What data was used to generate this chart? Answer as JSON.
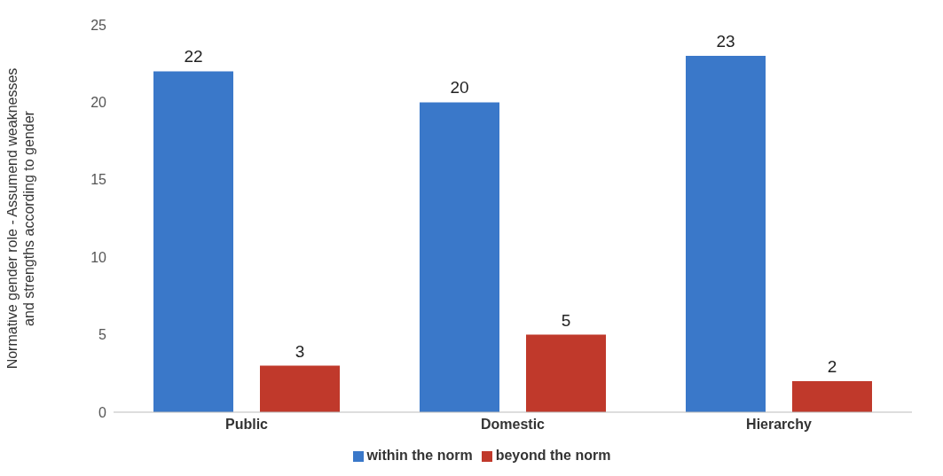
{
  "chart_data": {
    "type": "bar",
    "ylabel": "Normative gender role - Assumend weaknesses and strengths according to gender",
    "categories": [
      "Public",
      "Domestic",
      "Hierarchy"
    ],
    "series": [
      {
        "name": "within the norm",
        "color": "#3a78c9",
        "values": [
          22,
          20,
          23
        ]
      },
      {
        "name": "beyond the norm",
        "color": "#c0392b",
        "values": [
          3,
          5,
          2
        ]
      }
    ],
    "ylim": [
      0,
      25
    ],
    "yticks": [
      0,
      5,
      10,
      15,
      20,
      25
    ],
    "data_labels": true,
    "legend": "bottom"
  }
}
